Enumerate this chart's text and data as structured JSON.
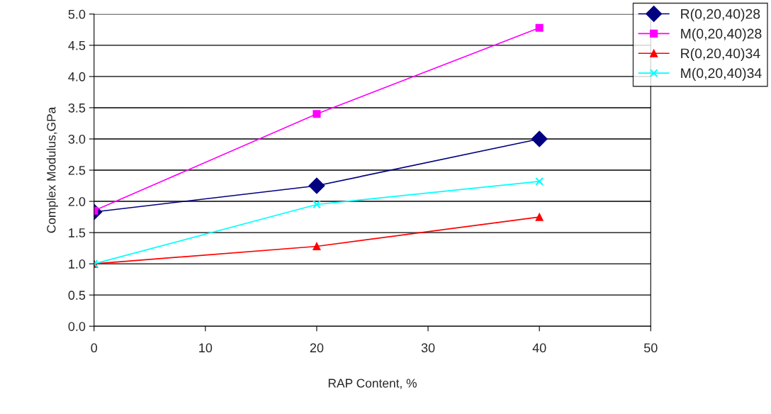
{
  "chart_data": {
    "type": "line",
    "xlabel": "RAP Content, %",
    "ylabel": "Complex Modulus,GPa",
    "x": [
      0,
      20,
      40
    ],
    "series": [
      {
        "name": "R(0,20,40)28",
        "color": "#000080",
        "marker": "diamond",
        "values": [
          1.83,
          2.25,
          3.0
        ]
      },
      {
        "name": "M(0,20,40)28",
        "color": "#ff00ff",
        "marker": "square",
        "values": [
          1.85,
          3.4,
          4.78
        ]
      },
      {
        "name": "R(0,20,40)34",
        "color": "#ff0000",
        "marker": "triangle",
        "values": [
          1.0,
          1.28,
          1.75
        ]
      },
      {
        "name": "M(0,20,40)34",
        "color": "#00ffff",
        "marker": "cross",
        "values": [
          1.0,
          1.95,
          2.32
        ]
      }
    ],
    "xlim": [
      0,
      50
    ],
    "xticks": [
      0,
      10,
      20,
      30,
      40,
      50
    ],
    "ylim": [
      0,
      5
    ],
    "yticks": [
      {
        "value": 0,
        "label": "0.0"
      },
      {
        "value": 0.5,
        "label": "0.5"
      },
      {
        "value": 1,
        "label": "1.0"
      },
      {
        "value": 1.5,
        "label": "1.5"
      },
      {
        "value": 2,
        "label": "2.0"
      },
      {
        "value": 2.5,
        "label": "2.5"
      },
      {
        "value": 3,
        "label": "3.0"
      },
      {
        "value": 3.5,
        "label": "3.5"
      },
      {
        "value": 4,
        "label": "4.0"
      },
      {
        "value": 4.5,
        "label": "4.5"
      },
      {
        "value": 5,
        "label": "5.0"
      }
    ],
    "grid": "y",
    "legend": "top right"
  }
}
